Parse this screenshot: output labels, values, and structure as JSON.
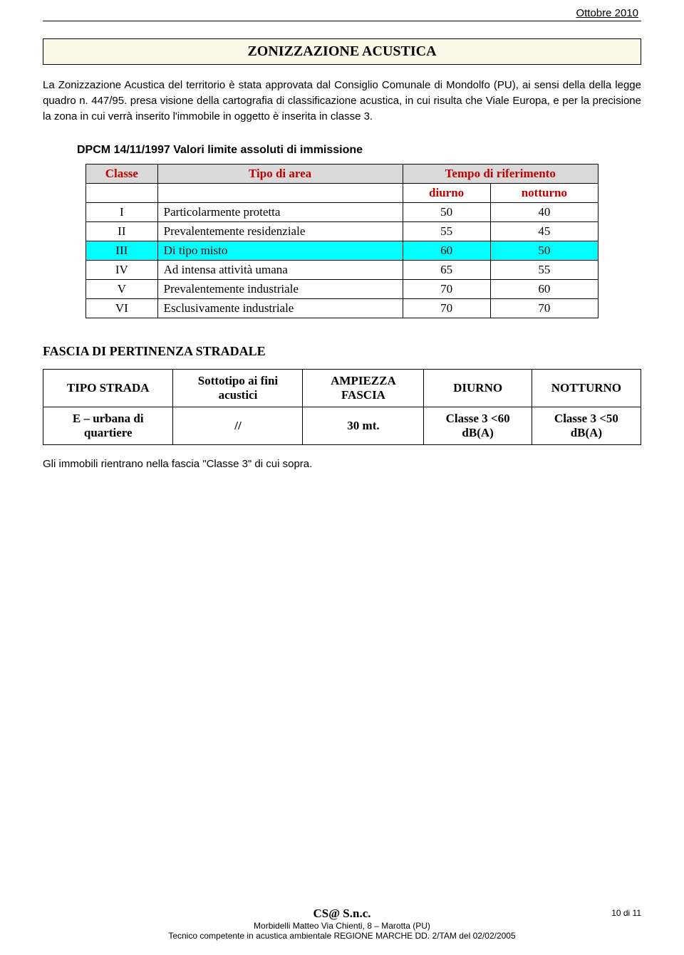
{
  "header": {
    "date": "Ottobre 2010"
  },
  "title_box": {
    "title": "ZONIZZAZIONE ACUSTICA"
  },
  "paragraphs": {
    "p1": "La Zonizzazione Acustica del territorio è stata approvata dal Consiglio Comunale di Mondolfo (PU), ai sensi della  della legge quadro n. 447/95. presa visione della cartografia di classificazione acustica, in cui risulta che Viale Europa, e per la precisione la zona in cui verrà inserito l'immobile in oggetto è inserita in classe 3.",
    "p2": "Gli immobili rientrano nella fascia \"Classe 3\" di cui sopra."
  },
  "table1": {
    "caption": "DPCM 14/11/1997 Valori limite assoluti di immissione",
    "headers": {
      "classe": "Classe",
      "tipo": "Tipo di area",
      "tempo": "Tempo di riferimento",
      "diurno": "diurno",
      "notturno": "notturno"
    },
    "highlight_row_index": 2,
    "highlight_color": "#00ffff",
    "header_bg": "#d9d9d9",
    "header_color": "#c00000",
    "rows": [
      {
        "classe": "I",
        "tipo": "Particolarmente protetta",
        "diurno": "50",
        "notturno": "40"
      },
      {
        "classe": "II",
        "tipo": "Prevalentemente residenziale",
        "diurno": "55",
        "notturno": "45"
      },
      {
        "classe": "III",
        "tipo": "Di tipo misto",
        "diurno": "60",
        "notturno": "50"
      },
      {
        "classe": "IV",
        "tipo": "Ad intensa attività umana",
        "diurno": "65",
        "notturno": "55"
      },
      {
        "classe": "V",
        "tipo": "Prevalentemente industriale",
        "diurno": "70",
        "notturno": "60"
      },
      {
        "classe": "VI",
        "tipo": "Esclusivamente industriale",
        "diurno": "70",
        "notturno": "70"
      }
    ]
  },
  "section2": {
    "heading": "FASCIA DI PERTINENZA STRADALE",
    "headers": {
      "tipo_strada": "TIPO STRADA",
      "sottotipo": "Sottotipo ai fini acustici",
      "ampiezza": "AMPIEZZA FASCIA",
      "diurno": "DIURNO",
      "notturno": "NOTTURNO"
    },
    "row": {
      "tipo_strada": "E – urbana di quartiere",
      "sottotipo": "//",
      "ampiezza": "30 mt.",
      "diurno": "Classe 3 <60 dB(A)",
      "notturno": "Classe 3 <50 dB(A)"
    }
  },
  "footer": {
    "brand": "CS@ S.n.c.",
    "page": "10 di 11",
    "line2": "Morbidelli Matteo Via Chienti, 8 – Marotta (PU)",
    "line3": "Tecnico competente in acustica ambientale REGIONE MARCHE DD. 2/TAM del 02/02/2005"
  }
}
